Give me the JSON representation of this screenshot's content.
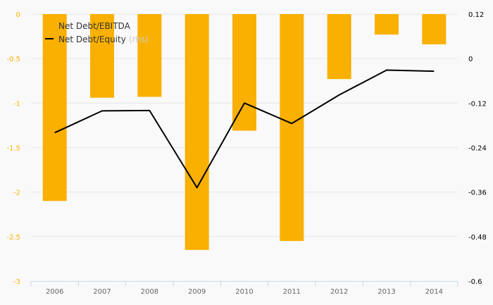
{
  "chart_data": {
    "type": "bar",
    "categories": [
      "2006",
      "2007",
      "2008",
      "2009",
      "2010",
      "2011",
      "2012",
      "2013",
      "2014"
    ],
    "series": [
      {
        "name": "Net Debt/EBITDA",
        "type": "bar",
        "axis": "left",
        "color": "#f9b000",
        "values": [
          -2.1,
          -0.94,
          -0.93,
          -2.65,
          -1.31,
          -2.55,
          -0.73,
          -0.23,
          -0.34
        ]
      },
      {
        "name": "Net Debt/Equity",
        "name_suffix": "(rhs)",
        "type": "line",
        "axis": "right",
        "color": "#000000",
        "values": [
          -0.2,
          -0.141,
          -0.14,
          -0.348,
          -0.12,
          -0.175,
          -0.098,
          -0.031,
          -0.034
        ]
      }
    ],
    "y_left": {
      "min": -3,
      "max": 0,
      "ticks": [
        0,
        -0.5,
        -1,
        -1.5,
        -2,
        -2.5,
        -3
      ],
      "tick_labels": [
        "0",
        "-0.5",
        "-1",
        "-1.5",
        "-2",
        "-2.5",
        "-3"
      ],
      "label_color": "#f9b000"
    },
    "y_right": {
      "min": -0.6,
      "max": 0.12,
      "ticks": [
        0.12,
        0,
        -0.12,
        -0.24,
        -0.36,
        -0.48,
        -0.6
      ],
      "tick_labels": [
        "0.12",
        "0",
        "-0.12",
        "-0.24",
        "-0.36",
        "-0.48",
        "-0.6"
      ],
      "label_color": "#000000"
    },
    "grid": true,
    "legend": "top-left",
    "colors": {
      "background": "#f9f9f9",
      "grid": "#e6e6e6",
      "axis": "#ccd6eb",
      "legend_muted": "#cccccc",
      "category_label": "#666666"
    }
  }
}
